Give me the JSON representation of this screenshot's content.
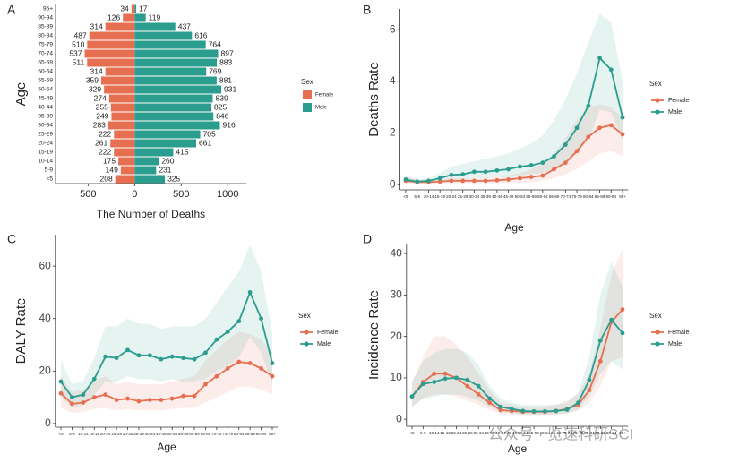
{
  "chart_data": [
    {
      "type": "pyramid",
      "panel": "A",
      "xlabel": "The Number of Deaths",
      "ylabel": "Age",
      "legend_title": "Sex",
      "categories": [
        "<5",
        "5-9",
        "10-14",
        "15-19",
        "20-24",
        "25-29",
        "30-34",
        "35-39",
        "40-44",
        "45-49",
        "50-54",
        "55-59",
        "60-64",
        "65-69",
        "70-74",
        "75-79",
        "80-84",
        "85-89",
        "90-94",
        "95+"
      ],
      "series": [
        {
          "name": "Female",
          "color": "#e76f51",
          "values": [
            208,
            149,
            175,
            222,
            261,
            222,
            283,
            249,
            255,
            274,
            329,
            359,
            314,
            511,
            537,
            510,
            487,
            314,
            126,
            34
          ]
        },
        {
          "name": "Male",
          "color": "#2a9d8f",
          "values": [
            325,
            231,
            260,
            415,
            661,
            705,
            916,
            846,
            825,
            839,
            931,
            881,
            769,
            883,
            897,
            764,
            616,
            437,
            119,
            17
          ]
        }
      ],
      "xlim": [
        -850,
        1200
      ],
      "xticks": [
        {
          "value": -500,
          "label": "500"
        },
        0,
        500,
        1000
      ]
    },
    {
      "type": "line",
      "panel": "B",
      "xlabel": "Age",
      "ylabel": "Deaths Rate",
      "legend_title": "Sex",
      "categories": [
        "<5",
        "5-9",
        "10-14",
        "15-19",
        "20-24",
        "25-29",
        "30-34",
        "35-39",
        "40-44",
        "45-49",
        "50-54",
        "55-59",
        "60-64",
        "65-69",
        "70-74",
        "75-79",
        "80-84",
        "85-89",
        "90-94",
        "95+"
      ],
      "series": [
        {
          "name": "Female",
          "color": "#e76f51",
          "values": [
            0.15,
            0.1,
            0.1,
            0.12,
            0.15,
            0.15,
            0.15,
            0.15,
            0.17,
            0.2,
            0.25,
            0.3,
            0.35,
            0.6,
            0.85,
            1.3,
            1.85,
            2.2,
            2.3,
            1.95
          ],
          "lower": [
            0.05,
            0.05,
            0.05,
            0.05,
            0.05,
            0.05,
            0.05,
            0.05,
            0.06,
            0.07,
            0.08,
            0.1,
            0.15,
            0.25,
            0.4,
            0.6,
            0.9,
            1.2,
            1.3,
            1.1
          ],
          "upper": [
            0.3,
            0.2,
            0.2,
            0.22,
            0.25,
            0.25,
            0.25,
            0.27,
            0.3,
            0.35,
            0.45,
            0.6,
            0.8,
            1.2,
            1.8,
            2.5,
            3.0,
            3.1,
            3.0,
            2.6
          ]
        },
        {
          "name": "Male",
          "color": "#2a9d8f",
          "values": [
            0.2,
            0.12,
            0.15,
            0.25,
            0.38,
            0.4,
            0.5,
            0.5,
            0.55,
            0.6,
            0.7,
            0.75,
            0.85,
            1.1,
            1.55,
            2.2,
            3.05,
            4.9,
            4.45,
            2.6
          ],
          "lower": [
            0.1,
            0.05,
            0.07,
            0.12,
            0.2,
            0.2,
            0.25,
            0.25,
            0.3,
            0.3,
            0.35,
            0.4,
            0.45,
            0.6,
            0.8,
            1.2,
            1.7,
            2.9,
            2.8,
            1.7
          ],
          "upper": [
            0.35,
            0.2,
            0.25,
            0.45,
            0.7,
            0.8,
            0.9,
            1,
            1.1,
            1.2,
            1.4,
            1.6,
            1.9,
            2.5,
            3.3,
            4.3,
            5.5,
            6.6,
            6.3,
            4.0
          ]
        }
      ],
      "ylim": [
        -0.2,
        6.8
      ],
      "yticks": [
        0,
        2,
        4,
        6
      ]
    },
    {
      "type": "line",
      "panel": "C",
      "xlabel": "Age",
      "ylabel": "DALY Rate",
      "legend_title": "Sex",
      "categories": [
        "<5",
        "5-9",
        "10-14",
        "15-19",
        "20-24",
        "25-29",
        "30-34",
        "35-39",
        "40-44",
        "45-49",
        "50-54",
        "55-59",
        "60-64",
        "65-69",
        "70-74",
        "75-79",
        "80-84",
        "85-89",
        "90-94",
        "95+"
      ],
      "series": [
        {
          "name": "Female",
          "color": "#e76f51",
          "values": [
            11.5,
            7.5,
            8,
            10,
            11,
            9,
            9.5,
            8.5,
            9,
            9,
            9.5,
            10.5,
            10.5,
            15,
            18,
            21,
            23.5,
            23,
            21,
            18
          ],
          "lower": [
            6,
            4,
            4.5,
            5.5,
            6,
            5,
            5.5,
            5,
            5,
            5,
            5.5,
            6,
            6,
            8,
            10,
            12,
            14,
            14,
            13,
            11
          ],
          "upper": [
            18,
            12,
            13,
            16,
            18,
            15,
            16,
            15,
            15,
            15,
            16,
            17,
            18,
            24,
            28,
            32,
            35,
            34,
            32,
            27
          ]
        },
        {
          "name": "Male",
          "color": "#2a9d8f",
          "values": [
            16,
            10,
            11,
            17,
            25.5,
            25,
            28,
            26,
            26,
            24.5,
            25.5,
            25,
            24.5,
            27,
            32,
            35,
            39,
            50,
            40,
            23
          ],
          "lower": [
            10,
            6,
            7,
            11,
            16,
            16,
            18,
            17,
            17,
            16,
            17,
            16,
            16,
            17,
            20,
            22,
            25,
            33,
            27,
            15
          ],
          "upper": [
            24,
            15,
            16,
            25,
            37,
            37,
            40,
            38,
            38,
            36,
            37,
            37,
            37,
            40,
            46,
            52,
            58,
            68,
            58,
            34
          ]
        }
      ],
      "ylim": [
        -1.4,
        72
      ],
      "yticks": [
        0,
        20,
        40,
        60
      ]
    },
    {
      "type": "line",
      "panel": "D",
      "xlabel": "Age",
      "ylabel": "Incidence Rate",
      "legend_title": "Sex",
      "categories": [
        "<5",
        "5-9",
        "10-14",
        "15-19",
        "20-24",
        "25-29",
        "30-34",
        "35-39",
        "40-44",
        "45-49",
        "50-54",
        "55-59",
        "60-64",
        "65-69",
        "70-74",
        "75-79",
        "80-84",
        "85-89",
        "90-94",
        "95+"
      ],
      "series": [
        {
          "name": "Female",
          "color": "#e76f51",
          "values": [
            5.5,
            9,
            11,
            11,
            10,
            8,
            6,
            4,
            2.2,
            2,
            1.8,
            1.8,
            1.8,
            2,
            2.5,
            3.5,
            7,
            14,
            23.5,
            26.5
          ],
          "lower": [
            3,
            5,
            6,
            6,
            5.5,
            4.5,
            3.5,
            2.2,
            1.3,
            1.1,
            1,
            1,
            1,
            1.1,
            1.4,
            2,
            4,
            8,
            14,
            15
          ],
          "upper": [
            9,
            15,
            20,
            20,
            18,
            15,
            11,
            7,
            4,
            3.5,
            3,
            3,
            3,
            3.5,
            4.5,
            6,
            11,
            22,
            35,
            41
          ]
        },
        {
          "name": "Male",
          "color": "#2a9d8f",
          "values": [
            5.5,
            8.5,
            9,
            9.8,
            10,
            9.5,
            8,
            5,
            3,
            2.5,
            2,
            1.9,
            1.9,
            2,
            2.3,
            4,
            9.5,
            19,
            24,
            20.8
          ],
          "lower": [
            3,
            5,
            5.5,
            6,
            6,
            5.5,
            4.5,
            3,
            1.8,
            1.5,
            1.2,
            1.1,
            1.1,
            1.2,
            1.4,
            2.4,
            5.5,
            11,
            14,
            12
          ],
          "upper": [
            9,
            14,
            16,
            17,
            17,
            16,
            13,
            8,
            5,
            4,
            3.5,
            3.5,
            3.5,
            3.5,
            4,
            6.5,
            15,
            30,
            38,
            32
          ]
        }
      ],
      "ylim": [
        -1.7,
        42.4
      ],
      "yticks": [
        0,
        10,
        20,
        30,
        40
      ]
    }
  ],
  "watermark": "公众号 · 览速科研SCI"
}
